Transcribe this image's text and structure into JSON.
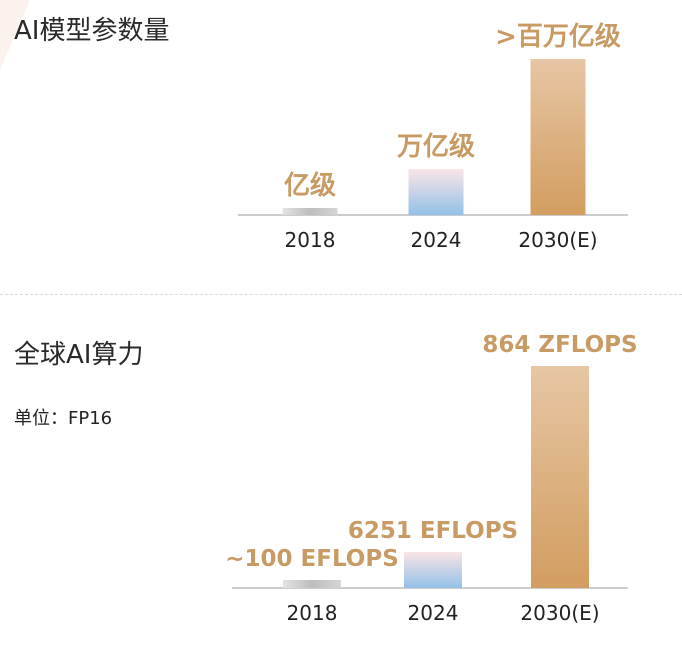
{
  "chart_data": [
    {
      "type": "bar",
      "title": "AI模型参数量",
      "categories": [
        "2018",
        "2024",
        "2030(E)"
      ],
      "values": [
        100000000.0,
        1000000000000.0,
        100000000000000.0
      ],
      "value_labels": [
        "亿级",
        "万亿级",
        ">百万亿级"
      ],
      "grid": false
    },
    {
      "type": "bar",
      "title": "全球AI算力",
      "subtitle": "单位：FP16",
      "categories": [
        "2018",
        "2024",
        "2030(E)"
      ],
      "values": [
        100,
        6251,
        864000
      ],
      "value_labels": [
        "~100 EFLOPS",
        "6251 EFLOPS",
        "864 ZFLOPS"
      ],
      "grid": false
    }
  ]
}
